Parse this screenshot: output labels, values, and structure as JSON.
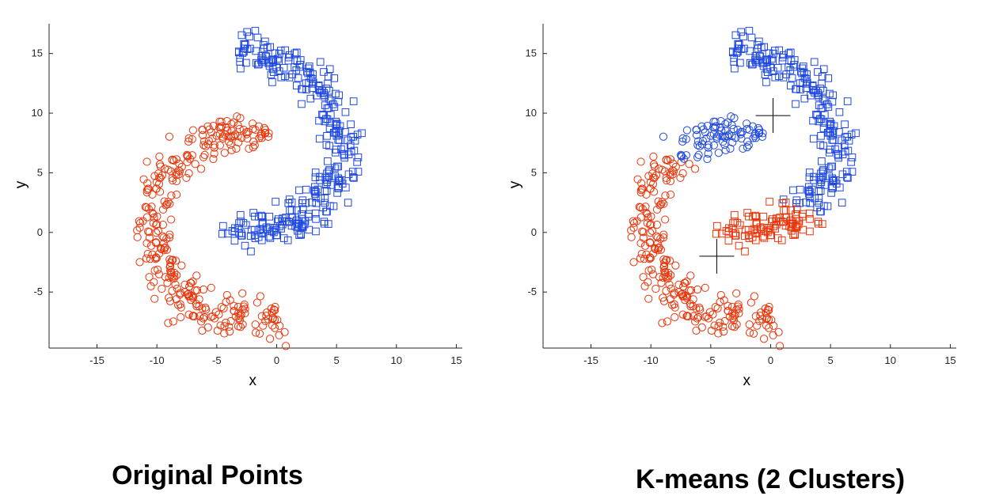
{
  "colors": {
    "red": "#e8360b",
    "blue": "#1f49e0",
    "axis": "#262626",
    "centroid": "#000000"
  },
  "chart_data": [
    {
      "type": "scatter",
      "caption": "Original Points",
      "xlabel": "x",
      "ylabel": "y",
      "xlim": [
        -19,
        15.5
      ],
      "ylim": [
        -9.7,
        17.5
      ],
      "xticks": [
        -15,
        -10,
        -5,
        0,
        5,
        10,
        15
      ],
      "yticks": [
        -5,
        0,
        5,
        10,
        15
      ],
      "series": [
        {
          "color": "red",
          "marker": "circle",
          "region": "lower-left-arc"
        },
        {
          "color": "blue",
          "marker": "square",
          "region": "upper-right-arc"
        }
      ]
    },
    {
      "type": "scatter",
      "caption": "K-means (2 Clusters)",
      "xlabel": "x",
      "ylabel": "y",
      "xlim": [
        -19,
        15.5
      ],
      "ylim": [
        -9.7,
        17.5
      ],
      "xticks": [
        -15,
        -10,
        -5,
        0,
        5,
        10,
        15
      ],
      "yticks": [
        -5,
        0,
        5,
        10,
        15
      ],
      "centroids": [
        [
          0.2,
          9.8
        ],
        [
          -4.5,
          -2.0
        ]
      ],
      "series": [
        {
          "color": "blue",
          "marker": "circle",
          "region": "inner-left-upper"
        },
        {
          "color": "red",
          "marker": "circle",
          "region": "outer-left-lower"
        },
        {
          "color": "blue",
          "marker": "square",
          "region": "outer-right-upper"
        },
        {
          "color": "red",
          "marker": "square",
          "region": "inner-right-lower"
        }
      ]
    }
  ]
}
